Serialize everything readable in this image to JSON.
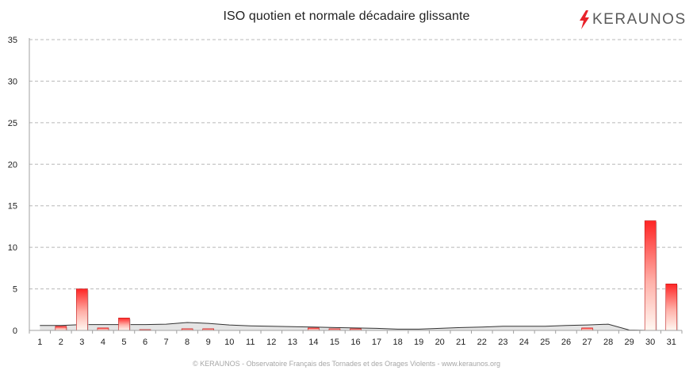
{
  "logo": {
    "text": "KERAUNOS",
    "icon": "lightning-bolt-icon",
    "bolt_color": "#e8222a"
  },
  "footer": "© KERAUNOS - Observatoire Français des Tornades et des Orages Violents - www.keraunos.org",
  "chart_data": {
    "type": "bar",
    "title": "ISO quotien et normale décadaire glissante",
    "xlabel": "",
    "ylabel": "",
    "categories": [
      "1",
      "2",
      "3",
      "4",
      "5",
      "6",
      "7",
      "8",
      "9",
      "10",
      "11",
      "12",
      "13",
      "14",
      "15",
      "16",
      "17",
      "18",
      "19",
      "20",
      "21",
      "22",
      "23",
      "24",
      "25",
      "26",
      "27",
      "28",
      "29",
      "30",
      "31"
    ],
    "ylim": [
      0,
      35
    ],
    "yticks": [
      0,
      5,
      10,
      15,
      20,
      25,
      30,
      35
    ],
    "grid": true,
    "legend": "none",
    "series": [
      {
        "type": "bar",
        "color": "#ff2a2a",
        "values": [
          0,
          0.5,
          5.0,
          0.3,
          1.5,
          0.1,
          0,
          0.2,
          0.2,
          0,
          0,
          0,
          0,
          0.3,
          0.2,
          0.2,
          0,
          0,
          0,
          0,
          0,
          0,
          0,
          0,
          0,
          0,
          0.3,
          0,
          0,
          13.2,
          5.6
        ]
      },
      {
        "type": "area",
        "color": "#d9d9d9",
        "values": [
          0.6,
          0.6,
          0.7,
          0.7,
          0.7,
          0.7,
          0.75,
          0.95,
          0.85,
          0.65,
          0.55,
          0.5,
          0.45,
          0.4,
          0.35,
          0.3,
          0.25,
          0.15,
          0.15,
          0.25,
          0.35,
          0.4,
          0.5,
          0.5,
          0.5,
          0.6,
          0.65,
          0.75,
          0.05,
          0,
          0
        ]
      }
    ]
  }
}
